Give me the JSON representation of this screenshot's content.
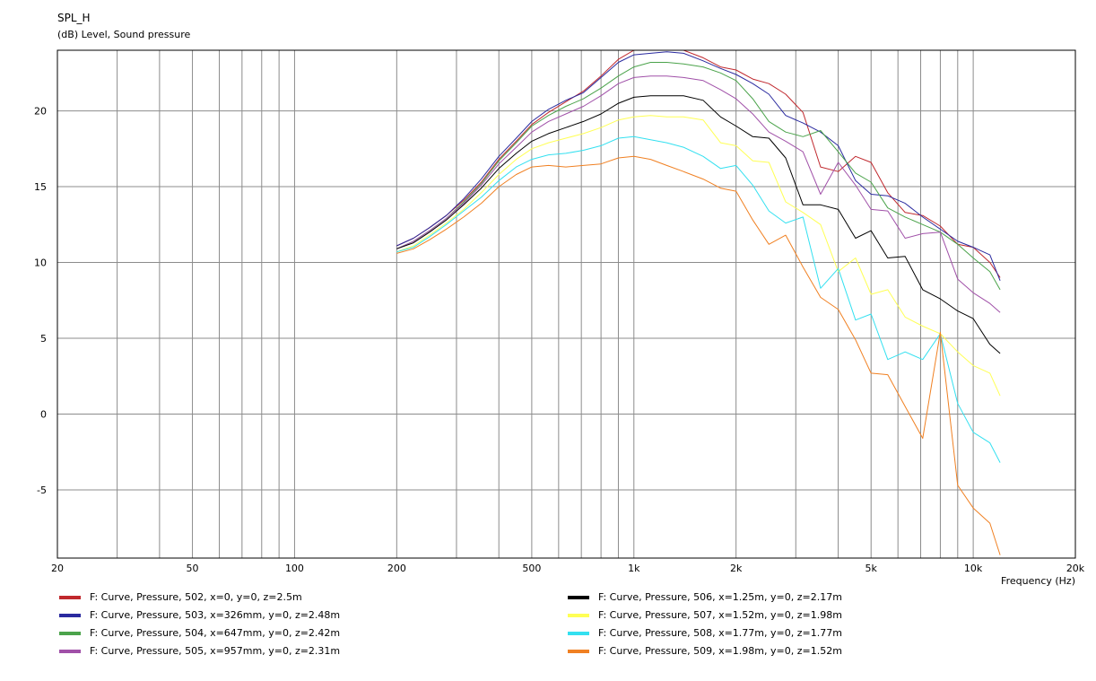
{
  "chart_data": {
    "type": "line",
    "title": "SPL_H",
    "subtitle": "(dB)  Level, Sound pressure",
    "xlabel": "Frequency  (Hz)",
    "xscale": "log",
    "xlim": [
      20,
      20000
    ],
    "ylim": [
      -9.5,
      24
    ],
    "grid": true,
    "legend_position": "bottom",
    "yticks": [
      {
        "value": 20,
        "label": "20"
      },
      {
        "value": 15,
        "label": "15"
      },
      {
        "value": 10,
        "label": "10"
      },
      {
        "value": 5,
        "label": "5"
      },
      {
        "value": 0,
        "label": "0"
      },
      {
        "value": -5,
        "label": "-5"
      }
    ],
    "xticks": [
      {
        "value": 20,
        "label": "20"
      },
      {
        "value": 50,
        "label": "50"
      },
      {
        "value": 100,
        "label": "100"
      },
      {
        "value": 200,
        "label": "200"
      },
      {
        "value": 500,
        "label": "500"
      },
      {
        "value": 1000,
        "label": "1k"
      },
      {
        "value": 2000,
        "label": "2k"
      },
      {
        "value": 5000,
        "label": "5k"
      },
      {
        "value": 10000,
        "label": "10k"
      },
      {
        "value": 20000,
        "label": "20k"
      }
    ],
    "x": [
      200,
      224,
      250,
      280,
      315,
      355,
      400,
      450,
      500,
      560,
      630,
      710,
      800,
      900,
      1000,
      1120,
      1250,
      1400,
      1600,
      1800,
      2000,
      2240,
      2500,
      2800,
      3150,
      3550,
      4000,
      4500,
      5000,
      5600,
      6300,
      7100,
      8000,
      9000,
      10000,
      11200,
      12000
    ],
    "series": [
      {
        "name": "F: Curve, Pressure, 502, x=0, y=0, z=2.5m",
        "color": "#c0282d",
        "values": [
          11.1,
          11.6,
          12.3,
          13.1,
          14.1,
          15.3,
          16.8,
          18.0,
          19.1,
          19.9,
          20.6,
          21.3,
          22.3,
          23.4,
          24.0,
          24.1,
          24.1,
          24.0,
          23.5,
          22.9,
          22.7,
          22.1,
          21.8,
          21.1,
          19.9,
          16.3,
          16.0,
          17.0,
          16.6,
          14.6,
          13.3,
          13.1,
          12.4,
          11.2,
          11.0,
          10.0,
          9.0
        ]
      },
      {
        "name": "F: Curve, Pressure, 503, x=326mm, y=0, z=2.48m",
        "color": "#2a2a9f",
        "values": [
          11.1,
          11.6,
          12.3,
          13.1,
          14.2,
          15.5,
          17.0,
          18.2,
          19.3,
          20.1,
          20.7,
          21.2,
          22.2,
          23.2,
          23.7,
          23.8,
          23.9,
          23.8,
          23.3,
          22.8,
          22.4,
          21.8,
          21.1,
          19.7,
          19.2,
          18.6,
          17.7,
          15.4,
          14.5,
          14.4,
          13.9,
          13.0,
          12.2,
          11.4,
          11.0,
          10.5,
          8.8
        ]
      },
      {
        "name": "F: Curve, Pressure, 504, x=647mm, y=0, z=2.42m",
        "color": "#4ba34b",
        "values": [
          10.9,
          11.4,
          12.1,
          12.9,
          14.0,
          15.2,
          16.7,
          17.9,
          19.0,
          19.7,
          20.3,
          20.8,
          21.5,
          22.3,
          22.9,
          23.2,
          23.2,
          23.1,
          22.9,
          22.5,
          22.0,
          20.8,
          19.3,
          18.6,
          18.3,
          18.7,
          17.3,
          15.9,
          15.3,
          13.6,
          13.0,
          12.5,
          12.0,
          11.2,
          10.3,
          9.4,
          8.2
        ]
      },
      {
        "name": "F: Curve, Pressure, 505, x=957mm, y=0, z=2.31m",
        "color": "#a050a8",
        "values": [
          10.9,
          11.4,
          12.1,
          12.9,
          13.9,
          15.1,
          16.5,
          17.6,
          18.6,
          19.3,
          19.8,
          20.3,
          21.0,
          21.8,
          22.2,
          22.3,
          22.3,
          22.2,
          22.0,
          21.4,
          20.8,
          19.8,
          18.6,
          18.0,
          17.3,
          14.5,
          16.6,
          15.1,
          13.5,
          13.4,
          11.6,
          11.9,
          12.0,
          8.9,
          8.0,
          7.3,
          6.7
        ]
      },
      {
        "name": "F: Curve, Pressure, 506, x=1.25m, y=0, z=2.17m",
        "color": "#000000",
        "values": [
          10.9,
          11.3,
          12.0,
          12.8,
          13.8,
          14.9,
          16.2,
          17.2,
          18.0,
          18.5,
          18.9,
          19.3,
          19.8,
          20.5,
          20.9,
          21.0,
          21.0,
          21.0,
          20.7,
          19.6,
          19.0,
          18.3,
          18.2,
          16.9,
          13.8,
          13.8,
          13.5,
          11.6,
          12.1,
          10.3,
          10.4,
          8.2,
          7.6,
          6.8,
          6.3,
          4.6,
          4.0
        ]
      },
      {
        "name": "F: Curve, Pressure, 507, x=1.52m, y=0, z=1.98m",
        "color": "#ffff55",
        "values": [
          10.7,
          11.1,
          11.8,
          12.6,
          13.5,
          14.6,
          15.8,
          16.8,
          17.5,
          17.9,
          18.2,
          18.5,
          18.9,
          19.4,
          19.6,
          19.7,
          19.6,
          19.6,
          19.4,
          17.9,
          17.7,
          16.7,
          16.6,
          14.0,
          13.3,
          12.5,
          9.4,
          10.3,
          7.9,
          8.2,
          6.4,
          5.8,
          5.3,
          4.1,
          3.2,
          2.7,
          1.2
        ]
      },
      {
        "name": "F: Curve, Pressure, 508, x=1.77m, y=0, z=1.77m",
        "color": "#33e0f0",
        "values": [
          10.7,
          11.0,
          11.7,
          12.5,
          13.4,
          14.3,
          15.4,
          16.3,
          16.8,
          17.1,
          17.2,
          17.4,
          17.7,
          18.2,
          18.3,
          18.1,
          17.9,
          17.6,
          17.0,
          16.2,
          16.4,
          15.1,
          13.4,
          12.6,
          13.0,
          8.3,
          9.6,
          6.2,
          6.6,
          3.6,
          4.1,
          3.6,
          5.3,
          0.7,
          -1.2,
          -1.9,
          -3.2
        ]
      },
      {
        "name": "F: Curve, Pressure, 509, x=1.98m, y=0, z=1.52m",
        "color": "#f08022",
        "values": [
          10.6,
          10.9,
          11.5,
          12.2,
          13.0,
          13.9,
          15.0,
          15.8,
          16.3,
          16.4,
          16.3,
          16.4,
          16.5,
          16.9,
          17.0,
          16.8,
          16.4,
          16.0,
          15.5,
          14.9,
          14.7,
          12.8,
          11.2,
          11.8,
          9.7,
          7.7,
          6.9,
          4.9,
          2.7,
          2.6,
          0.5,
          -1.6,
          5.4,
          -4.7,
          -6.2,
          -7.2,
          -9.3
        ]
      }
    ]
  }
}
